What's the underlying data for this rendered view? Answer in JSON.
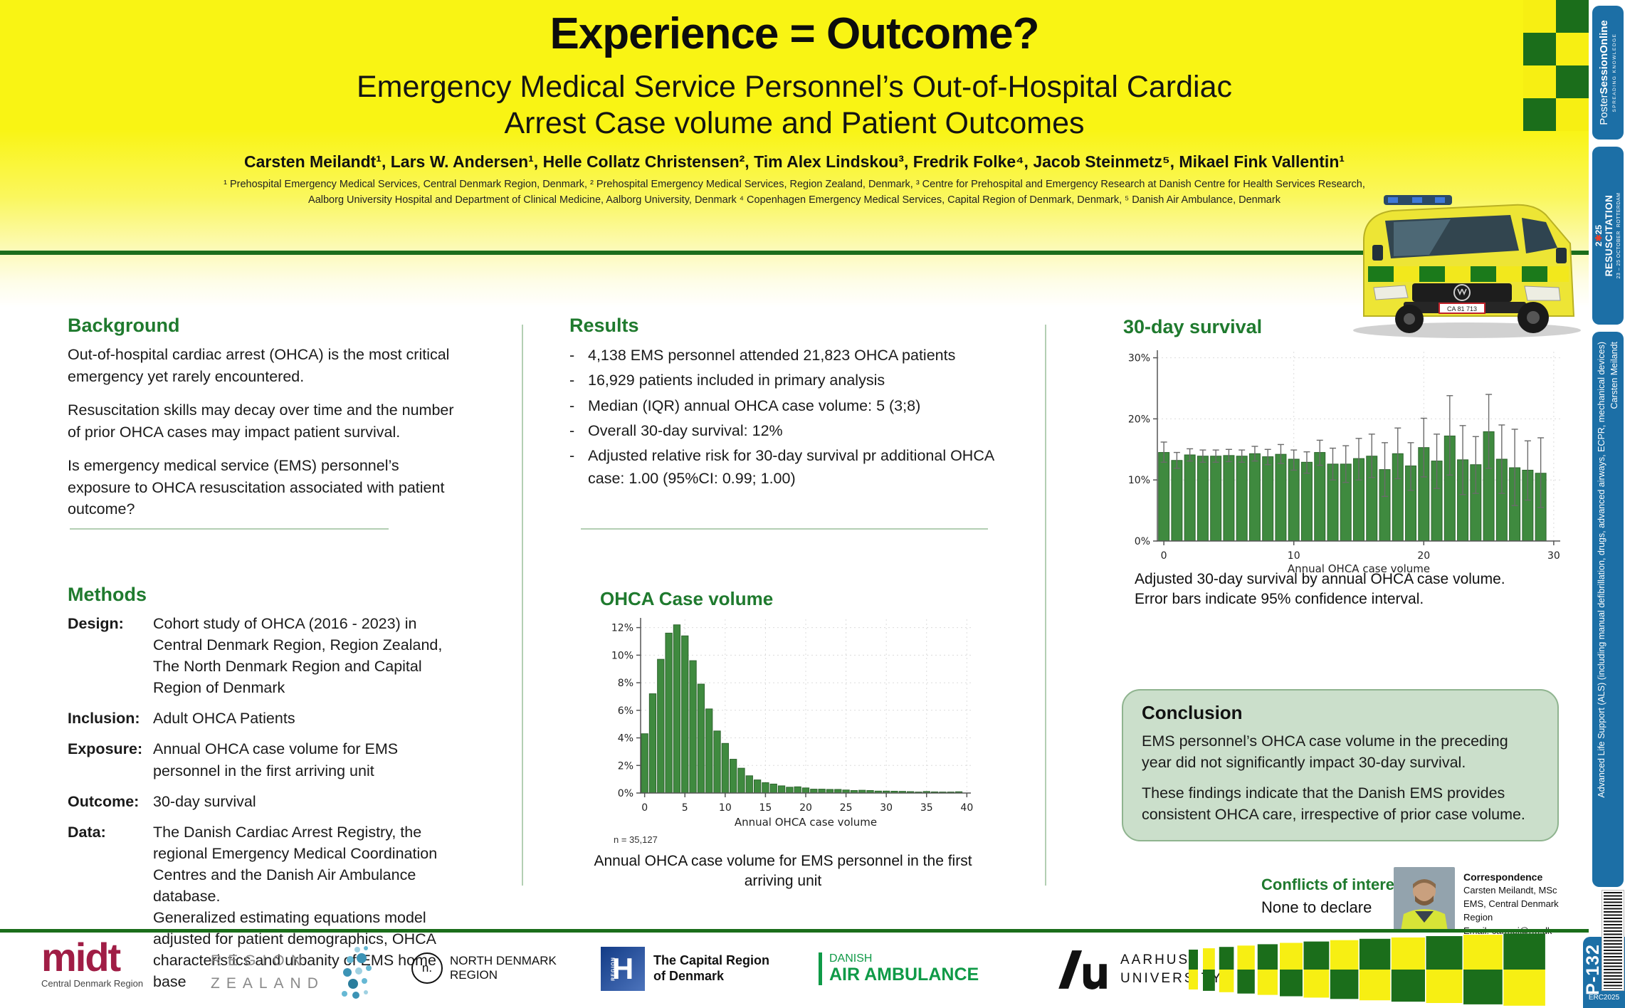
{
  "header": {
    "title": "Experience = Outcome?",
    "subtitle_line1": "Emergency Medical Service Personnel’s Out-of-Hospital Cardiac",
    "subtitle_line2": "Arrest Case volume and Patient Outcomes",
    "authors": "Carsten Meilandt¹, Lars W. Andersen¹, Helle Collatz Christensen², Tim Alex Lindskou³, Fredrik Folke⁴, Jacob Steinmetz⁵, Mikael Fink Vallentin¹",
    "affiliations_line1": "¹ Prehospital Emergency Medical Services, Central Denmark Region, Denmark, ² Prehospital Emergency Medical Services, Region Zealand, Denmark, ³ Centre for Prehospital and Emergency Research at Danish Centre for Health Services Research,",
    "affiliations_line2": "Aalborg University Hospital and Department of Clinical Medicine, Aalborg University, Denmark ⁴ Copenhagen Emergency Medical Services, Capital Region of Denmark, Denmark, ⁵ Danish Air Ambulance, Denmark"
  },
  "ambulance": {
    "plate": "CA 81 713"
  },
  "background": {
    "heading": "Background",
    "paragraphs": [
      "Out-of-hospital cardiac arrest (OHCA) is the most critical emergency yet rarely encountered.",
      "Resuscitation skills may decay over time and the number of prior OHCA cases may impact patient survival.",
      "Is emergency medical service (EMS) personnel’s exposure to OHCA resuscitation associated with patient outcome?"
    ]
  },
  "methods": {
    "heading": "Methods",
    "rows": [
      {
        "label": "Design:",
        "value": "Cohort study of OHCA (2016 - 2023) in Central Denmark Region, Region Zealand, The North Denmark Region and Capital Region of Denmark"
      },
      {
        "label": "Inclusion:",
        "value": "Adult OHCA Patients"
      },
      {
        "label": "Exposure:",
        "value": "Annual OHCA case volume for EMS personnel in the first arriving unit"
      },
      {
        "label": "Outcome:",
        "value": "30-day survival"
      },
      {
        "label": "Data:",
        "value": "The Danish Cardiac Arrest Registry, the regional Emergency Medical Coordination Centres and the Danish Air Ambulance database.\nGeneralized estimating equations model adjusted for patient demographics, OHCA characteristics and urbanity of EMS home base"
      }
    ]
  },
  "results": {
    "heading": "Results",
    "dash": "-",
    "bullets": [
      "4,138 EMS personnel attended 21,823 OHCA patients",
      "16,929 patients included in primary analysis",
      "Median (IQR) annual OHCA case volume: 5 (3;8)",
      "Overall 30-day survival: 12%",
      "Adjusted relative risk for 30-day survival pr additional OHCA case: 1.00 (95%CI: 0.99; 1.00)"
    ]
  },
  "case_volume_section": {
    "heading": "OHCA Case volume",
    "caption": "Annual OHCA case volume for EMS personnel in the first arriving unit"
  },
  "survival_section": {
    "heading": "30-day survival",
    "caption_line1": "Adjusted 30-day survival by annual OHCA case volume.",
    "caption_line2": "Error bars indicate 95% confidence interval."
  },
  "conclusion": {
    "heading": "Conclusion",
    "paragraphs": [
      "EMS personnel’s OHCA case volume in the preceding year did not significantly impact 30-day survival.",
      "These findings indicate that the Danish EMS provides consistent OHCA care, irrespective of prior case volume."
    ]
  },
  "conflicts": {
    "heading": "Conflicts of interest",
    "text": "None to declare"
  },
  "correspondence": {
    "heading": "Correspondence",
    "line1": "Carsten Meilandt, MSc",
    "line2": "EMS, Central Denmark Region",
    "line3": "Email: carmei@rm.dk"
  },
  "footer": {
    "midt": {
      "wordmark": "midt",
      "subtitle": "Central Denmark Region"
    },
    "zealand": {
      "line1": "REGION",
      "line2": "ZEALAND"
    },
    "north": {
      "badge": "n.",
      "line1": "NORTH DENMARK",
      "line2": "REGION"
    },
    "capital": {
      "letter": "H",
      "region_vertical": "REGION",
      "line1": "The Capital Region",
      "line2": "of Denmark"
    },
    "air": {
      "line1": "DANISH",
      "line2": "AIR AMBULANCE"
    },
    "aarhus": {
      "line1": "AARHUS",
      "line2": "UNIVERSITY"
    }
  },
  "sidebar": {
    "poster_session": {
      "brand1": "Poster",
      "brand2": "SessionOnline",
      "tagline": "SPREADING KNOWLEDGE"
    },
    "resuscitation": {
      "prefix": "2",
      "star": "✱",
      "suffix": "25",
      "name": "RESUSCITATION",
      "dates": "23 – 25 OCTOBER",
      "city": "ROTTERDAM"
    },
    "topic": "Advanced Life Support (ALS) (including manual defibrillation, drugs, advanced airways, ECPR, mechanical devices)",
    "author": "Carsten Meilandt",
    "poster_number": "P-132",
    "erc": "ERC2025"
  },
  "colors": {
    "poster_yellow": "#F7EF13",
    "dark_green": "#1B6E1B",
    "heading_green": "#1F7A2E",
    "bar_green": "#3F8A3F",
    "bar_edge": "#2E652E",
    "badge_blue": "#1C6FA6",
    "conclusion_bg": "#CBDFCB",
    "midt_maroon": "#A01D45",
    "air_green": "#0F9A47",
    "capital_blue": "#123B86",
    "error_bar_gray": "#6b6b6b"
  },
  "chart_data": [
    {
      "type": "bar",
      "title": "OHCA Case volume",
      "xlabel": "Annual OHCA case volume",
      "ylabel": "",
      "note": "n = 35,127",
      "x_min": 0,
      "values": [
        4.3,
        7.2,
        9.7,
        11.6,
        12.2,
        11.4,
        9.6,
        7.9,
        6.1,
        4.5,
        3.6,
        2.45,
        1.8,
        1.25,
        0.95,
        0.75,
        0.65,
        0.52,
        0.42,
        0.45,
        0.37,
        0.28,
        0.28,
        0.26,
        0.26,
        0.22,
        0.18,
        0.2,
        0.18,
        0.14,
        0.14,
        0.13,
        0.12,
        0.1,
        0.07,
        0.11,
        0.08,
        0.07,
        0.07,
        0.09
      ],
      "xticks": [
        0,
        5,
        10,
        15,
        20,
        25,
        30,
        35,
        40
      ],
      "yticks": [
        0,
        2,
        4,
        6,
        8,
        10,
        12
      ],
      "ylim": [
        0,
        12.6
      ],
      "grid": true,
      "legend": "none"
    },
    {
      "type": "bar",
      "title": "30-day survival",
      "xlabel": "Annual OHCA case volume",
      "ylabel": "",
      "note": "",
      "x_min": 0,
      "values": [
        14.5,
        13.2,
        14.1,
        13.9,
        13.9,
        14.0,
        13.9,
        14.3,
        13.8,
        14.2,
        13.4,
        12.9,
        14.5,
        12.6,
        12.6,
        13.5,
        13.9,
        11.7,
        14.3,
        12.3,
        15.3,
        13.1,
        17.2,
        13.3,
        12.5,
        17.9,
        13.4,
        12.0,
        11.6,
        11.1
      ],
      "ci_low": [
        12.9,
        11.9,
        13.1,
        12.9,
        12.9,
        13.0,
        12.9,
        13.1,
        12.5,
        12.7,
        11.6,
        11.1,
        12.4,
        10.0,
        9.6,
        10.0,
        10.4,
        7.3,
        10.2,
        8.3,
        10.5,
        8.6,
        10.8,
        7.6,
        7.8,
        11.9,
        7.8,
        5.8,
        6.7,
        5.5
      ],
      "ci_high": [
        16.2,
        14.5,
        15.1,
        14.9,
        14.9,
        15.0,
        14.9,
        15.5,
        15.0,
        15.8,
        14.9,
        14.6,
        16.5,
        15.2,
        15.6,
        16.8,
        17.5,
        16.1,
        18.5,
        16.1,
        20.1,
        17.5,
        23.8,
        18.9,
        17.1,
        24.0,
        19.0,
        18.3,
        16.4,
        16.9
      ],
      "xticks": [
        0,
        10,
        20,
        30
      ],
      "yticks": [
        0,
        10,
        20,
        30
      ],
      "ylim": [
        0,
        31
      ],
      "grid": true,
      "legend": "none"
    }
  ]
}
